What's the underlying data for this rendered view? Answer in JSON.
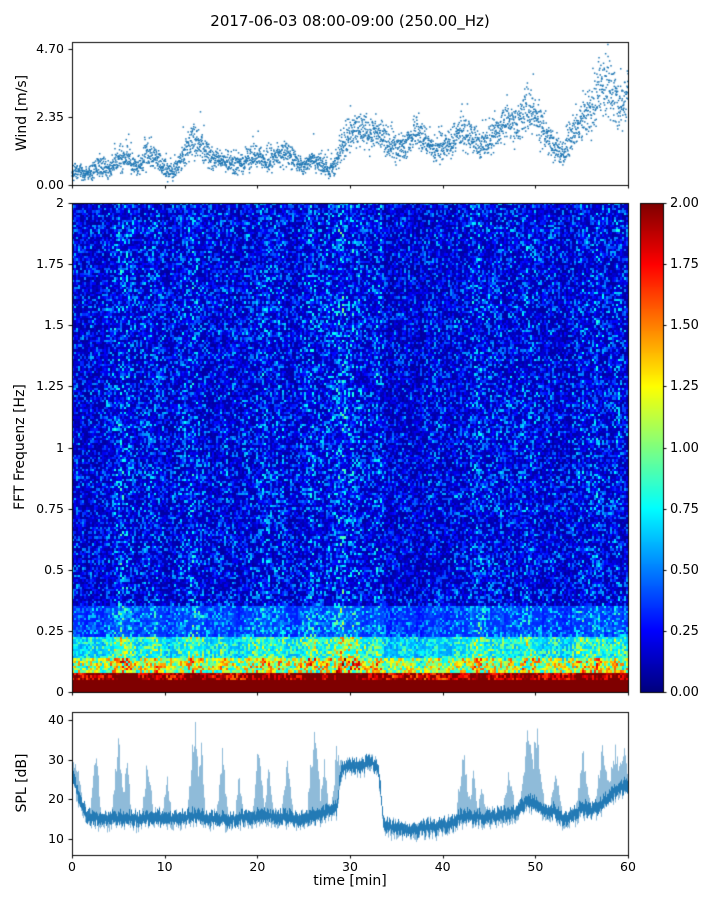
{
  "figure": {
    "title": "2017-06-03 08:00-09:00 (250.00_Hz)",
    "background": "#ffffff"
  },
  "chart_data": [
    {
      "id": "wind",
      "type": "scatter",
      "ylabel": "Wind [m/s]",
      "xlim": [
        0,
        60
      ],
      "ylim": [
        0,
        4.9333
      ],
      "yticks": {
        "labels": [
          "0.00",
          "2.35",
          "4.70"
        ],
        "values": [
          0,
          2.35,
          4.7
        ]
      },
      "marker_color": "#1f77b4",
      "n_points": 3200,
      "seed": 7,
      "envelope": {
        "x": [
          0,
          2,
          3,
          4,
          5,
          6,
          7,
          8,
          9,
          10,
          11,
          12,
          13,
          14,
          15,
          16,
          17,
          18,
          19,
          20,
          21,
          22,
          23,
          24,
          25,
          26,
          27,
          28,
          29,
          30,
          31,
          32,
          33,
          34,
          35,
          36,
          37,
          38,
          39,
          40,
          41,
          42,
          43,
          44,
          45,
          46,
          47,
          48,
          49,
          50,
          51,
          52,
          53,
          54,
          55,
          56,
          57,
          58,
          59,
          60
        ],
        "mean": [
          0.45,
          0.4,
          0.7,
          0.5,
          0.9,
          1.0,
          0.6,
          1.1,
          1.0,
          0.55,
          0.5,
          1.0,
          1.6,
          1.3,
          1.0,
          0.85,
          0.8,
          0.7,
          0.9,
          1.0,
          0.8,
          1.0,
          1.1,
          0.9,
          0.6,
          0.9,
          0.7,
          0.5,
          1.3,
          1.8,
          1.9,
          1.7,
          1.8,
          1.5,
          1.3,
          1.4,
          1.8,
          1.6,
          1.2,
          1.3,
          1.5,
          1.8,
          1.7,
          1.4,
          1.5,
          1.9,
          2.2,
          2.0,
          2.7,
          2.4,
          1.8,
          1.3,
          1.1,
          1.8,
          2.3,
          2.6,
          3.3,
          3.4,
          2.8,
          3.0
        ],
        "spread": [
          0.25,
          0.2,
          0.3,
          0.25,
          0.35,
          0.4,
          0.3,
          0.4,
          0.35,
          0.25,
          0.25,
          0.4,
          0.5,
          0.45,
          0.35,
          0.3,
          0.3,
          0.3,
          0.3,
          0.35,
          0.3,
          0.35,
          0.35,
          0.3,
          0.25,
          0.3,
          0.3,
          0.25,
          0.5,
          0.5,
          0.5,
          0.45,
          0.5,
          0.45,
          0.4,
          0.4,
          0.5,
          0.45,
          0.4,
          0.4,
          0.45,
          0.5,
          0.5,
          0.4,
          0.45,
          0.5,
          0.55,
          0.5,
          0.7,
          0.6,
          0.5,
          0.4,
          0.35,
          0.5,
          0.6,
          0.7,
          0.8,
          0.8,
          0.7,
          0.6
        ]
      }
    },
    {
      "id": "fft-spectrogram",
      "type": "heatmap",
      "ylabel": "FFT Frequenz [Hz]",
      "xlim": [
        0,
        60
      ],
      "ylim": [
        0,
        2
      ],
      "yticks": {
        "labels": [
          "2",
          "1.75",
          "1.5",
          "1.25",
          "1",
          "0.75",
          "0.5",
          "0.25",
          "0"
        ],
        "values": [
          2,
          1.75,
          1.5,
          1.25,
          1,
          0.75,
          0.5,
          0.25,
          0
        ]
      },
      "colormap": "jet",
      "clim": [
        0,
        2
      ],
      "grid": {
        "cols": 278,
        "rows": 204
      },
      "seed": 99,
      "band_edges": [
        0.04,
        0.075,
        0.13,
        0.22,
        0.35
      ],
      "bands": [
        {
          "f_range": [
            0,
            0.04
          ],
          "level": "saturated, >= 2.0 (dark red band)"
        },
        {
          "f_range": [
            0.04,
            0.075
          ],
          "level": "1.1 - 2.0 (red/orange)"
        },
        {
          "f_range": [
            0.075,
            0.13
          ],
          "level": "0.5 - 1.5 (yellow/green patches)"
        },
        {
          "f_range": [
            0.13,
            0.22
          ],
          "level": "0.3 - 1.2 (green/cyan in active columns)"
        },
        {
          "f_range": [
            0.22,
            0.35
          ],
          "level": "0.15 - 0.8 (cyan/blue)"
        },
        {
          "f_range": [
            0.35,
            2.0
          ],
          "level": "0.05 - 0.4 (dark blue noise, vertical striations)"
        }
      ],
      "activity": {
        "x": [
          0,
          1,
          2,
          3,
          4,
          5,
          6,
          7,
          8,
          9,
          10,
          11,
          12,
          13,
          14,
          15,
          16,
          17,
          18,
          19,
          20,
          21,
          22,
          23,
          24,
          25,
          26,
          27,
          28,
          29,
          30,
          31,
          32,
          33,
          34,
          35,
          36,
          37,
          38,
          39,
          40,
          41,
          42,
          43,
          44,
          45,
          46,
          47,
          48,
          49,
          50,
          51,
          52,
          53,
          54,
          55,
          56,
          57,
          58,
          59,
          60
        ],
        "level": [
          0.5,
          0.45,
          0.55,
          0.5,
          0.6,
          0.9,
          0.8,
          0.55,
          0.6,
          0.7,
          0.5,
          0.45,
          0.6,
          0.85,
          0.7,
          0.5,
          0.6,
          0.5,
          0.45,
          0.6,
          0.75,
          0.6,
          0.65,
          0.6,
          0.5,
          0.7,
          0.85,
          0.6,
          0.7,
          0.95,
          0.9,
          0.8,
          0.6,
          0.7,
          0.4,
          0.45,
          0.5,
          0.45,
          0.4,
          0.5,
          0.45,
          0.5,
          0.6,
          0.55,
          0.8,
          0.6,
          0.5,
          0.6,
          0.55,
          0.85,
          0.7,
          0.5,
          0.6,
          0.5,
          0.55,
          0.8,
          0.6,
          0.7,
          0.6,
          0.65,
          0.6
        ]
      }
    },
    {
      "id": "colorbar",
      "type": "colorbar",
      "colormap": "jet",
      "clim": [
        0,
        2
      ],
      "ticks": {
        "labels": [
          "0.00",
          "0.25",
          "0.50",
          "0.75",
          "1.00",
          "1.25",
          "1.50",
          "1.75",
          "2.00"
        ],
        "values": [
          0,
          0.25,
          0.5,
          0.75,
          1,
          1.25,
          1.5,
          1.75,
          2
        ]
      }
    },
    {
      "id": "spl",
      "type": "line",
      "ylabel": "SPL [dB]",
      "xlabel": "time [min]",
      "xlim": [
        0,
        60
      ],
      "ylim": [
        6,
        42
      ],
      "yticks": {
        "labels": [
          "10",
          "20",
          "30",
          "40"
        ],
        "values": [
          10,
          20,
          30,
          40
        ]
      },
      "xticks": {
        "labels": [
          "0",
          "10",
          "20",
          "30",
          "40",
          "50",
          "60"
        ],
        "values": [
          0,
          10,
          20,
          30,
          40,
          50,
          60
        ]
      },
      "color": "#1f77b4",
      "seed": 5,
      "envelope": {
        "x": [
          0,
          0.8,
          1.5,
          3,
          5,
          7,
          9,
          11,
          13,
          15,
          17,
          19,
          21,
          23,
          25,
          27,
          28.5,
          29,
          30,
          31,
          32,
          33,
          33.6,
          35,
          37,
          39,
          41,
          42,
          44,
          46,
          48,
          49,
          50,
          51,
          52,
          53,
          54,
          55,
          56,
          57,
          58,
          59,
          60
        ],
        "mean": [
          26,
          20,
          16,
          15,
          15.5,
          15,
          15.5,
          15,
          16,
          15.5,
          15,
          15.5,
          16,
          15.5,
          15,
          16.5,
          18,
          27,
          29,
          28,
          30,
          28,
          14,
          12.5,
          12.5,
          13,
          14,
          16,
          15.5,
          16,
          17,
          20,
          19,
          17,
          17,
          15,
          16,
          18,
          17,
          19,
          21,
          23,
          24
        ]
      },
      "spikes": {
        "t": [
          0.3,
          2.5,
          5.0,
          5.9,
          8.1,
          10.2,
          13.2,
          13.9,
          16.2,
          18.0,
          20.1,
          21.2,
          23.2,
          26.1,
          27.2,
          28.6,
          42.2,
          43.3,
          44.2,
          47.1,
          49.3,
          50.1,
          52.2,
          55.1,
          57.2,
          58.6,
          59.5
        ],
        "peak": [
          28,
          30,
          31,
          29,
          27,
          25,
          35,
          32,
          30,
          24,
          31,
          26,
          28,
          35,
          28,
          31,
          30,
          25,
          22,
          26,
          36,
          35,
          25,
          30,
          32,
          30,
          31
        ],
        "width": [
          0.5,
          0.4,
          0.5,
          0.3,
          0.4,
          0.3,
          0.5,
          0.3,
          0.4,
          0.3,
          0.4,
          0.3,
          0.4,
          0.5,
          0.3,
          0.4,
          0.5,
          0.3,
          0.3,
          0.4,
          0.6,
          0.5,
          0.4,
          0.5,
          0.5,
          0.5,
          0.5
        ]
      }
    }
  ]
}
